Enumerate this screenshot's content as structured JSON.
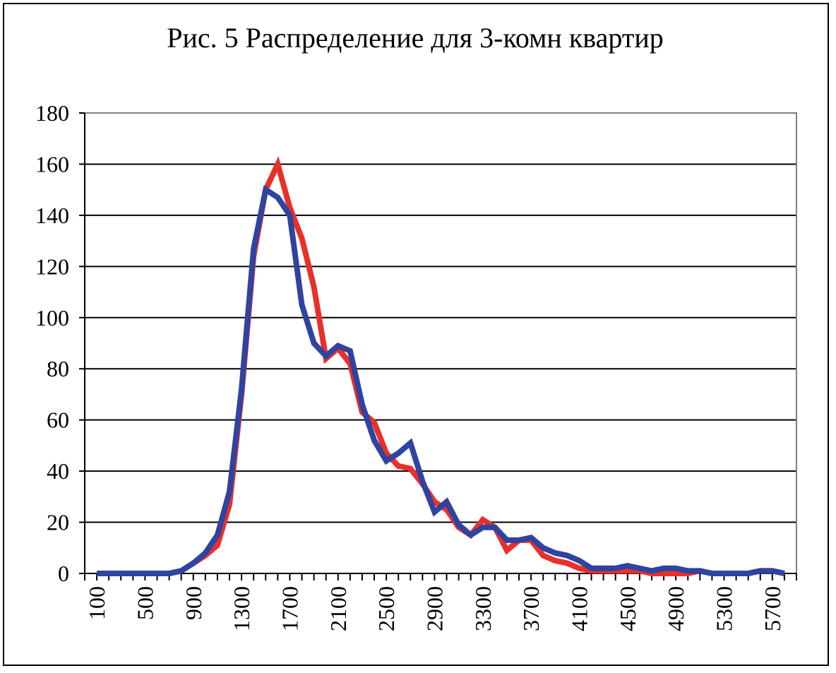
{
  "chart_data": {
    "type": "line",
    "title": "Рис. 5 Распределение для 3-комн квартир",
    "xlabel": "",
    "ylabel": "",
    "x": [
      100,
      200,
      300,
      400,
      500,
      600,
      700,
      800,
      900,
      1000,
      1100,
      1200,
      1300,
      1400,
      1500,
      1600,
      1700,
      1800,
      1900,
      2000,
      2100,
      2200,
      2300,
      2400,
      2500,
      2600,
      2700,
      2800,
      2900,
      3000,
      3100,
      3200,
      3300,
      3400,
      3500,
      3600,
      3700,
      3800,
      3900,
      4000,
      4100,
      4200,
      4300,
      4400,
      4500,
      4600,
      4700,
      4800,
      4900,
      5000,
      5100,
      5200,
      5300,
      5400,
      5500,
      5600,
      5700,
      5800
    ],
    "x_tick_labels": [
      "100",
      "500",
      "900",
      "1300",
      "1700",
      "2100",
      "2500",
      "2900",
      "3300",
      "3700",
      "4100",
      "4500",
      "4900",
      "5300",
      "5700"
    ],
    "y_tick_labels": [
      "0",
      "20",
      "40",
      "60",
      "80",
      "100",
      "120",
      "140",
      "160",
      "180"
    ],
    "ylim": [
      0,
      180
    ],
    "xlim": [
      0,
      5900
    ],
    "grid": true,
    "series": [
      {
        "color": "#e8302a",
        "values": [
          0,
          0,
          0,
          0,
          0,
          0,
          0,
          1,
          4,
          7,
          11,
          27,
          70,
          124,
          150,
          160,
          143,
          131,
          112,
          84,
          88,
          82,
          63,
          59,
          47,
          42,
          41,
          35,
          28,
          25,
          18,
          15,
          21,
          18,
          9,
          13,
          13,
          7,
          5,
          4,
          2,
          1,
          1,
          1,
          1,
          1,
          0,
          0,
          0,
          0,
          1,
          0,
          0,
          0,
          0,
          1,
          1,
          0
        ]
      },
      {
        "color": "#2f43a0",
        "values": [
          0,
          0,
          0,
          0,
          0,
          0,
          0,
          1,
          4,
          8,
          15,
          32,
          72,
          127,
          150,
          147,
          140,
          105,
          90,
          85,
          89,
          87,
          66,
          52,
          44,
          47,
          51,
          36,
          24,
          28,
          19,
          15,
          18,
          18,
          13,
          13,
          14,
          10,
          8,
          7,
          5,
          2,
          2,
          2,
          3,
          2,
          1,
          2,
          2,
          1,
          1,
          0,
          0,
          0,
          0,
          1,
          1,
          0
        ]
      }
    ]
  }
}
